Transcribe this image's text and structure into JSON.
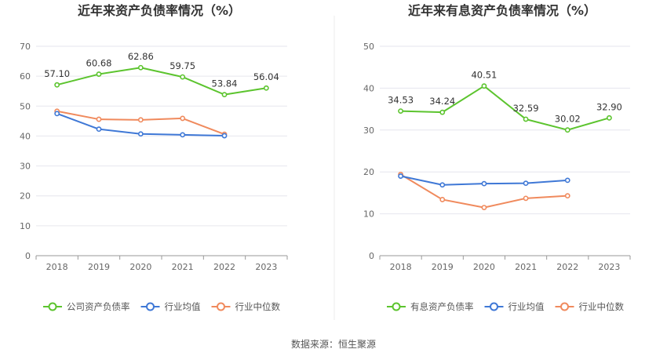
{
  "source_label": "数据来源：恒生聚源",
  "chart_data": [
    {
      "type": "line",
      "title": "近年来资产负债率情况（%）",
      "categories": [
        "2018",
        "2019",
        "2020",
        "2021",
        "2022",
        "2023"
      ],
      "ylim": [
        0,
        70
      ],
      "yticks": [
        0,
        10,
        20,
        30,
        40,
        50,
        60,
        70
      ],
      "grid": true,
      "legend_position": "bottom",
      "series": [
        {
          "name": "公司资产负债率",
          "color": "#5CC42E",
          "values": [
            57.1,
            60.68,
            62.86,
            59.75,
            53.84,
            56.04
          ],
          "labels": [
            "57.10",
            "60.68",
            "62.86",
            "59.75",
            "53.84",
            "56.04"
          ]
        },
        {
          "name": "行业均值",
          "color": "#3F78D6",
          "values": [
            47.5,
            42.3,
            40.7,
            40.4,
            40.1,
            null
          ],
          "labels": []
        },
        {
          "name": "行业中位数",
          "color": "#F08A5D",
          "values": [
            48.3,
            45.6,
            45.4,
            45.9,
            40.6,
            null
          ],
          "labels": []
        }
      ]
    },
    {
      "type": "line",
      "title": "近年来有息资产负债率情况（%）",
      "categories": [
        "2018",
        "2019",
        "2020",
        "2021",
        "2022",
        "2023"
      ],
      "ylim": [
        0,
        50
      ],
      "yticks": [
        0,
        10,
        20,
        30,
        40,
        50
      ],
      "grid": true,
      "legend_position": "bottom",
      "series": [
        {
          "name": "有息资产负债率",
          "color": "#5CC42E",
          "values": [
            34.53,
            34.24,
            40.51,
            32.59,
            30.02,
            32.9
          ],
          "labels": [
            "34.53",
            "34.24",
            "40.51",
            "32.59",
            "30.02",
            "32.90"
          ]
        },
        {
          "name": "行业均值",
          "color": "#3F78D6",
          "values": [
            19.0,
            16.9,
            17.2,
            17.3,
            18.0,
            null
          ],
          "labels": []
        },
        {
          "name": "行业中位数",
          "color": "#F08A5D",
          "values": [
            19.4,
            13.4,
            11.5,
            13.7,
            14.3,
            null
          ],
          "labels": []
        }
      ]
    }
  ]
}
